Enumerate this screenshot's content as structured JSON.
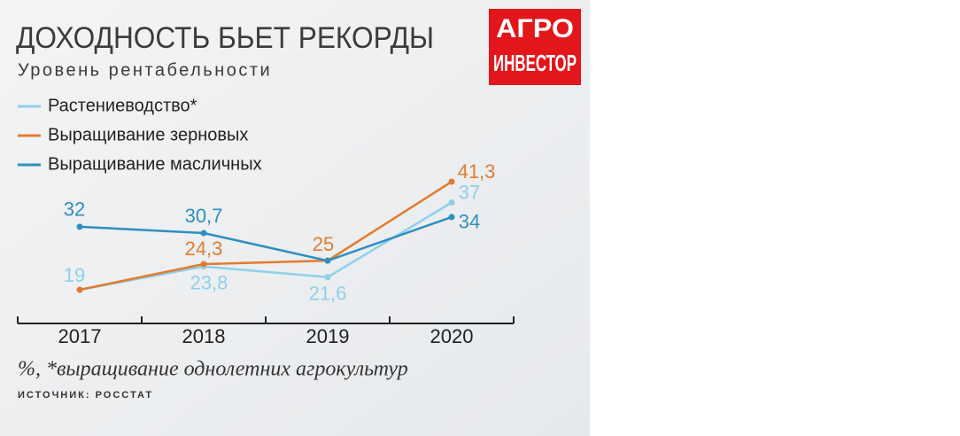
{
  "chart_data": {
    "type": "line",
    "title": "ДОХОДНОСТЬ БЬЕТ РЕКОРДЫ",
    "subtitle": "Уровень рентабельности",
    "categories": [
      "2017",
      "2018",
      "2019",
      "2020"
    ],
    "series": [
      {
        "name": "Растениеводство*",
        "color": "#8fd0ea",
        "values": [
          19,
          23.8,
          21.6,
          37
        ],
        "value_labels": [
          "19",
          "23,8",
          "21,6",
          "37"
        ]
      },
      {
        "name": "Выращивание зерновых",
        "color": "#e37b2e",
        "values": [
          19,
          24.3,
          25,
          41.3
        ],
        "value_labels": [
          null,
          "24,3",
          "25",
          "41,3"
        ]
      },
      {
        "name": "Выращивание масличных",
        "color": "#2f8fc0",
        "values": [
          32,
          30.7,
          25,
          34
        ],
        "value_labels": [
          "32",
          "30,7",
          null,
          "34"
        ]
      }
    ],
    "footnote": "%, *выращивание однолетних агрокультур",
    "source": "ИСТОЧНИК: РОССТАТ",
    "logo": [
      "АГРО",
      "ИНВЕСТОР"
    ]
  }
}
